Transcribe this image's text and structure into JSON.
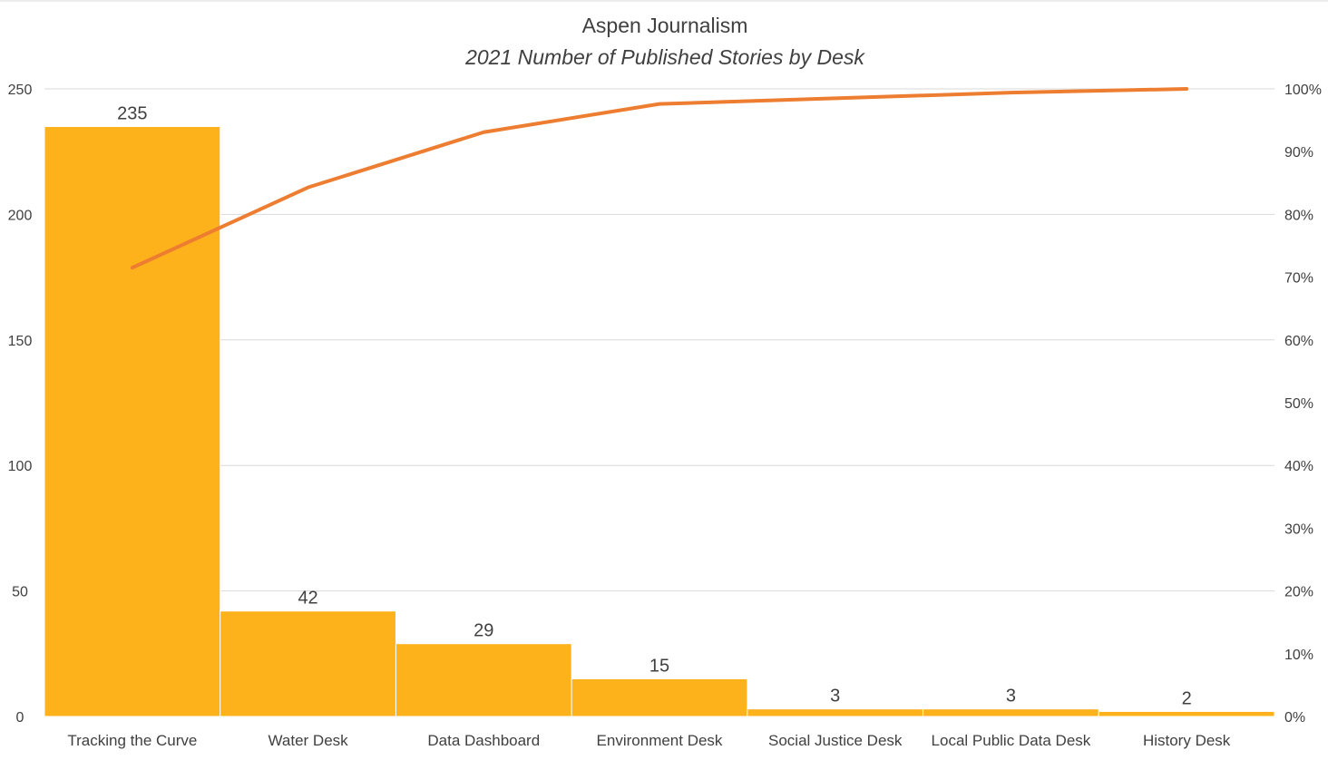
{
  "chart_data": {
    "type": "bar",
    "title": "Aspen Journalism",
    "subtitle": "2021 Number of Published Stories by Desk",
    "categories": [
      "Tracking the Curve",
      "Water Desk",
      "Data Dashboard",
      "Environment Desk",
      "Social Justice Desk",
      "Local Public Data Desk",
      "History Desk"
    ],
    "series": [
      {
        "type": "bar",
        "axis": "left",
        "values": [
          235,
          42,
          29,
          15,
          3,
          3,
          2
        ]
      },
      {
        "type": "line",
        "axis": "right",
        "values": [
          71.5,
          84.3,
          93.1,
          97.6,
          98.5,
          99.4,
          100
        ]
      }
    ],
    "ylim": [
      0,
      250
    ],
    "yticks": [
      0,
      50,
      100,
      150,
      200,
      250
    ],
    "y2lim": [
      0,
      100
    ],
    "y2ticks": [
      "0%",
      "10%",
      "20%",
      "30%",
      "40%",
      "50%",
      "60%",
      "70%",
      "80%",
      "90%",
      "100%"
    ],
    "grid": true,
    "legend": "none",
    "colors": {
      "bar": "#FDB11A",
      "line": "#ED7D31",
      "grid": "#D9D9D9",
      "text": "#404040"
    }
  }
}
